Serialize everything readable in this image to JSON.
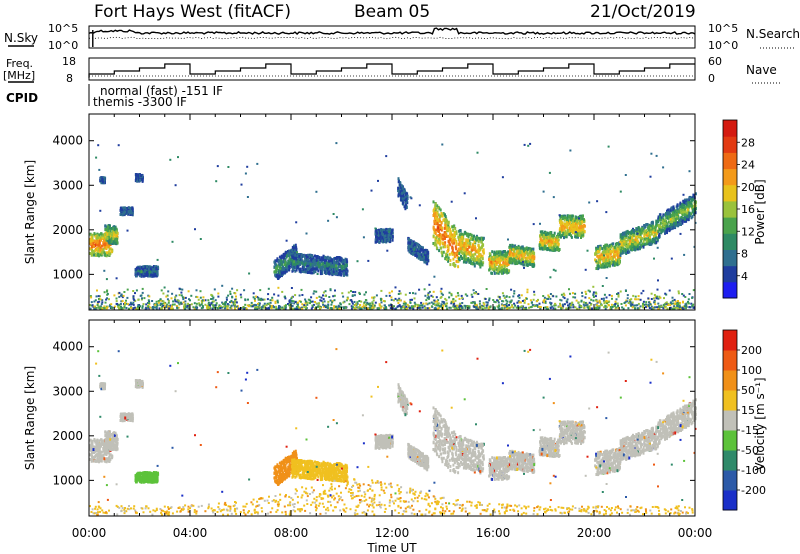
{
  "header": {
    "station": "Fort Hays West (fitACF)",
    "beam": "Beam 05",
    "date": "21/Oct/2019"
  },
  "noise_panel": {
    "left_label": "N.Sky",
    "right_label": "N.Search",
    "ticks_left": [
      "10^5",
      "10^0"
    ],
    "ticks_right": [
      "10^5",
      "10^0"
    ]
  },
  "freq_panel": {
    "left_label_1": "Freq.",
    "left_label_2": "[MHz]",
    "right_label": "Nave",
    "ticks_left": [
      "18",
      "8"
    ],
    "ticks_right": [
      "60",
      "0"
    ],
    "cpid_label": "CPID",
    "cpid_lines": [
      "normal (fast) -151 IF",
      "themis -3300 IF"
    ]
  },
  "chart_data": [
    {
      "type": "heatmap",
      "panel": "power",
      "ylabel": "Slant Range [km]",
      "ylim": [
        200,
        4600
      ],
      "y_ticks": [
        1000,
        2000,
        3000,
        4000
      ],
      "x_ticks": [
        "00:00",
        "04:00",
        "08:00",
        "12:00",
        "16:00",
        "20:00",
        "00:00"
      ],
      "colorbar_label": "Power [dB]",
      "colorbar_ticks": [
        "4",
        "8",
        "12",
        "16",
        "20",
        "24",
        "28"
      ],
      "colorbar_colors": [
        "#1e1ef0",
        "#1f3d9e",
        "#2f6f8f",
        "#2e8a64",
        "#4aa34c",
        "#9ac23c",
        "#e8c21c",
        "#f39a1a",
        "#ee6a14",
        "#e23a12",
        "#d41a10"
      ]
    },
    {
      "type": "heatmap",
      "panel": "velocity",
      "ylabel": "Slant Range [km]",
      "ylim": [
        200,
        4600
      ],
      "y_ticks": [
        1000,
        2000,
        3000,
        4000
      ],
      "x_ticks": [
        "00:00",
        "04:00",
        "08:00",
        "12:00",
        "16:00",
        "20:00",
        "00:00"
      ],
      "xlabel": "Time UT",
      "colorbar_label": "Velocity [m s⁻¹]",
      "colorbar_ticks": [
        "200",
        "100",
        "50",
        "15",
        "-15",
        "-50",
        "-100",
        "-200"
      ],
      "colorbar_colors": [
        "#1a2fc8",
        "#2c5aa8",
        "#2f8a6a",
        "#5cc23a",
        "#c0c0b8",
        "#f0c020",
        "#f09018",
        "#ee5a14",
        "#e02010"
      ]
    }
  ]
}
